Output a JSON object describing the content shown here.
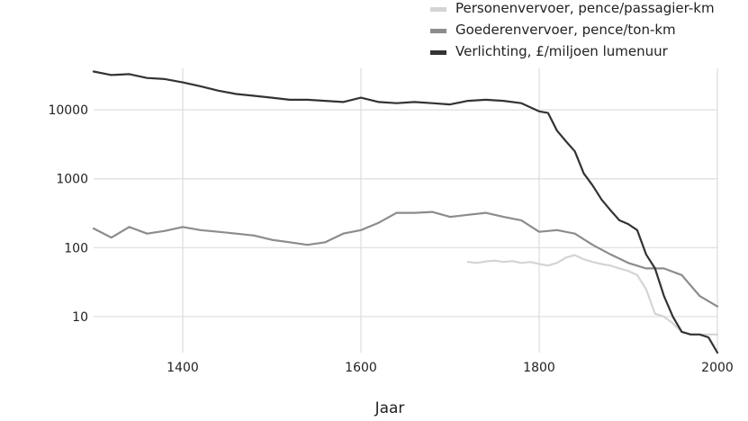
{
  "chart_data": {
    "type": "line",
    "title": "",
    "xlabel": "Jaar",
    "ylabel": "",
    "xlim": [
      1300,
      2000
    ],
    "ylim": [
      3,
      40000
    ],
    "yscale": "log",
    "grid": true,
    "legend_position": "top-right",
    "x_ticks": [
      1400,
      1600,
      1800,
      2000
    ],
    "x_tick_labels": [
      "1400",
      "1600",
      "1800",
      "2000"
    ],
    "y_ticks": [
      10,
      100,
      1000,
      10000
    ],
    "y_tick_labels": [
      "10",
      "100",
      "1000",
      "10000"
    ],
    "series": [
      {
        "name": "Personenvervoer, pence/passagier-km",
        "color": "#d4d4d4",
        "x": [
          1720,
          1730,
          1740,
          1750,
          1760,
          1770,
          1780,
          1790,
          1800,
          1810,
          1820,
          1830,
          1840,
          1850,
          1860,
          1870,
          1880,
          1890,
          1900,
          1910,
          1920,
          1930,
          1940,
          1950,
          1960,
          1970,
          1980,
          1990,
          2000
        ],
        "y": [
          62,
          60,
          63,
          65,
          62,
          64,
          60,
          62,
          58,
          55,
          60,
          72,
          78,
          68,
          62,
          58,
          55,
          50,
          46,
          40,
          25,
          11,
          10,
          8,
          6,
          5.5,
          5.5,
          5.5,
          5.5
        ]
      },
      {
        "name": "Goederenvervoer, pence/ton-km",
        "color": "#8c8c8c",
        "x": [
          1300,
          1320,
          1340,
          1360,
          1380,
          1400,
          1420,
          1440,
          1460,
          1480,
          1500,
          1520,
          1540,
          1560,
          1580,
          1600,
          1620,
          1640,
          1660,
          1680,
          1700,
          1720,
          1740,
          1760,
          1780,
          1800,
          1820,
          1840,
          1860,
          1880,
          1900,
          1920,
          1940,
          1960,
          1980,
          2000
        ],
        "y": [
          190,
          140,
          200,
          160,
          175,
          200,
          180,
          170,
          160,
          150,
          130,
          120,
          110,
          120,
          160,
          180,
          230,
          320,
          320,
          330,
          280,
          300,
          320,
          280,
          250,
          170,
          180,
          160,
          110,
          80,
          60,
          50,
          50,
          40,
          20,
          14
        ]
      },
      {
        "name": "Verlichting, £/miljoen lumenuur",
        "color": "#333333",
        "x": [
          1300,
          1320,
          1340,
          1360,
          1380,
          1400,
          1420,
          1440,
          1460,
          1480,
          1500,
          1520,
          1540,
          1560,
          1580,
          1600,
          1620,
          1640,
          1660,
          1680,
          1700,
          1720,
          1740,
          1760,
          1780,
          1800,
          1810,
          1820,
          1830,
          1840,
          1850,
          1860,
          1870,
          1880,
          1890,
          1900,
          1910,
          1920,
          1930,
          1940,
          1950,
          1960,
          1970,
          1980,
          1990,
          2000
        ],
        "y": [
          36000,
          32000,
          33000,
          29000,
          28000,
          25000,
          22000,
          19000,
          17000,
          16000,
          15000,
          14000,
          14000,
          13500,
          13000,
          15000,
          13000,
          12500,
          13000,
          12500,
          12000,
          13500,
          14000,
          13500,
          12500,
          9500,
          9000,
          5000,
          3500,
          2500,
          1200,
          800,
          500,
          350,
          250,
          220,
          180,
          80,
          50,
          20,
          10,
          6,
          5.5,
          5.5,
          5,
          3
        ]
      }
    ]
  }
}
